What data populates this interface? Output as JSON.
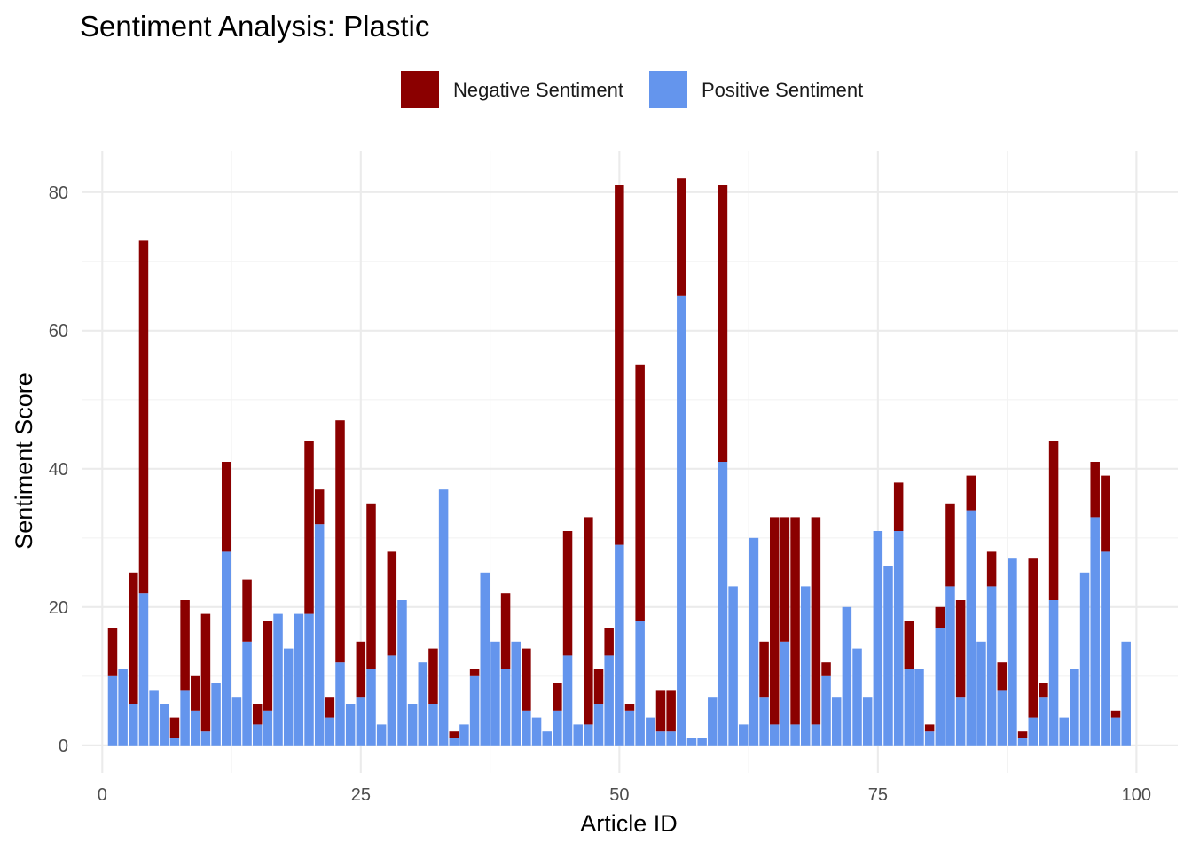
{
  "chart_data": {
    "type": "bar",
    "stacked": true,
    "title": "Sentiment Analysis: Plastic",
    "xlabel": "Article ID",
    "ylabel": "Sentiment Score",
    "xlim": [
      -2,
      104
    ],
    "ylim": [
      -4,
      86
    ],
    "x_ticks": [
      0,
      25,
      50,
      75,
      100
    ],
    "y_ticks": [
      0,
      20,
      40,
      60,
      80
    ],
    "grid": true,
    "legend_position": "top",
    "legend": [
      {
        "name": "Negative Sentiment",
        "color": "#8B0000"
      },
      {
        "name": "Positive Sentiment",
        "color": "#6495ED"
      }
    ],
    "x": [
      1,
      2,
      3,
      4,
      5,
      6,
      7,
      8,
      9,
      10,
      11,
      12,
      13,
      14,
      15,
      16,
      17,
      18,
      19,
      20,
      21,
      22,
      23,
      24,
      25,
      26,
      27,
      28,
      29,
      30,
      31,
      32,
      33,
      34,
      35,
      36,
      37,
      38,
      39,
      40,
      41,
      42,
      43,
      44,
      45,
      46,
      47,
      48,
      49,
      50,
      51,
      52,
      53,
      54,
      55,
      56,
      57,
      58,
      59,
      60,
      61,
      62,
      63,
      64,
      65,
      66,
      67,
      68,
      69,
      70,
      71,
      72,
      73,
      74,
      75,
      76,
      77,
      78,
      79,
      80,
      81,
      82,
      83,
      84,
      85,
      86,
      87,
      88,
      89,
      90,
      91,
      92,
      93,
      94,
      95,
      96,
      97,
      98,
      99
    ],
    "series": [
      {
        "name": "Positive Sentiment",
        "color": "#6495ED",
        "values": [
          10,
          11,
          6,
          22,
          8,
          6,
          1,
          8,
          5,
          2,
          9,
          28,
          7,
          15,
          3,
          5,
          19,
          14,
          19,
          19,
          32,
          4,
          12,
          6,
          7,
          11,
          3,
          13,
          21,
          6,
          12,
          6,
          37,
          1,
          3,
          10,
          25,
          15,
          11,
          15,
          5,
          4,
          2,
          5,
          13,
          3,
          3,
          6,
          13,
          29,
          5,
          18,
          4,
          2,
          2,
          65,
          1,
          1,
          7,
          41,
          23,
          3,
          30,
          7,
          3,
          15,
          3,
          23,
          3,
          10,
          7,
          20,
          14,
          7,
          31,
          26,
          31,
          11,
          11,
          2,
          17,
          23,
          7,
          34,
          15,
          23,
          8,
          27,
          1,
          4,
          7,
          21,
          4,
          11,
          25,
          33,
          28,
          4,
          15
        ]
      },
      {
        "name": "Negative Sentiment",
        "color": "#8B0000",
        "values": [
          7,
          0,
          19,
          51,
          0,
          0,
          3,
          13,
          5,
          17,
          0,
          13,
          0,
          9,
          3,
          13,
          0,
          0,
          0,
          25,
          5,
          3,
          35,
          0,
          8,
          24,
          0,
          15,
          0,
          0,
          0,
          8,
          0,
          1,
          0,
          1,
          0,
          0,
          11,
          0,
          9,
          0,
          0,
          4,
          18,
          0,
          30,
          5,
          4,
          52,
          1,
          37,
          0,
          6,
          6,
          17,
          0,
          0,
          0,
          40,
          0,
          0,
          0,
          8,
          30,
          18,
          30,
          0,
          30,
          2,
          0,
          0,
          0,
          0,
          0,
          0,
          7,
          7,
          0,
          1,
          3,
          12,
          14,
          5,
          0,
          5,
          4,
          0,
          1,
          23,
          2,
          23,
          0,
          0,
          0,
          8,
          11,
          1,
          0
        ]
      }
    ]
  }
}
